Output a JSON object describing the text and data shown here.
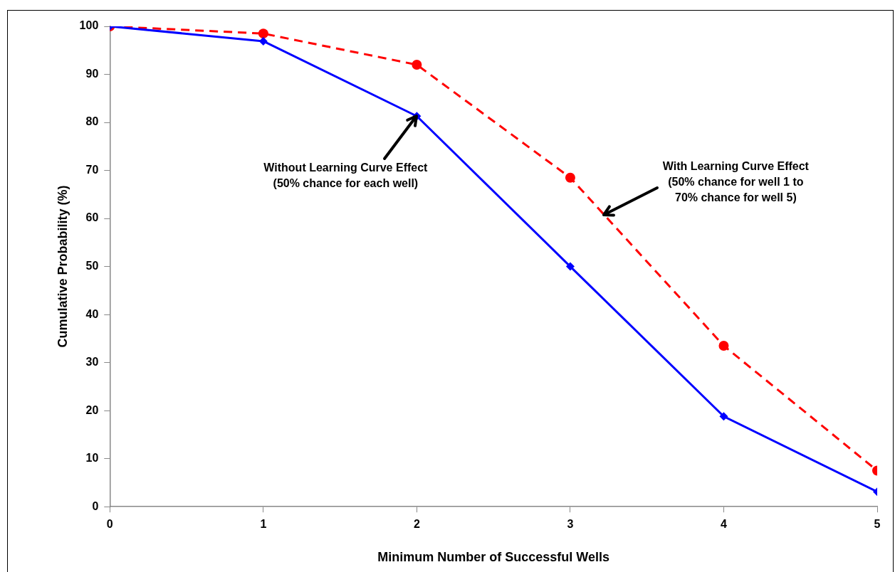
{
  "chart_data": {
    "type": "line",
    "xlabel": "Minimum Number of Successful Wells",
    "ylabel": "Cumulative Probability (%)",
    "x": [
      0,
      1,
      2,
      3,
      4,
      5
    ],
    "series": [
      {
        "color": "#0000ff",
        "marker": "diamond",
        "line_style": "solid",
        "values": [
          100,
          96.9,
          81.3,
          50,
          18.8,
          3.1
        ]
      },
      {
        "color": "#ff0000",
        "marker": "circle",
        "line_style": "dashed",
        "values": [
          100,
          98.5,
          92,
          68.5,
          33.5,
          7.5
        ]
      }
    ],
    "xlim": [
      0,
      5
    ],
    "xticks": [
      0,
      1,
      2,
      3,
      4,
      5
    ],
    "ylim": [
      0,
      100
    ],
    "yticks": [
      0,
      10,
      20,
      30,
      40,
      50,
      60,
      70,
      80,
      90,
      100
    ],
    "grid": false,
    "legend": false,
    "annotations": [
      {
        "text": "Without Learning Curve Effect\n(50% chance for each well)",
        "x": 2,
        "y": 81.3
      },
      {
        "text": "With Learning Curve Effect\n(50% chance for well 1 to\n70% chance for well 5)",
        "x": 3.22,
        "y": 60.8
      }
    ]
  }
}
